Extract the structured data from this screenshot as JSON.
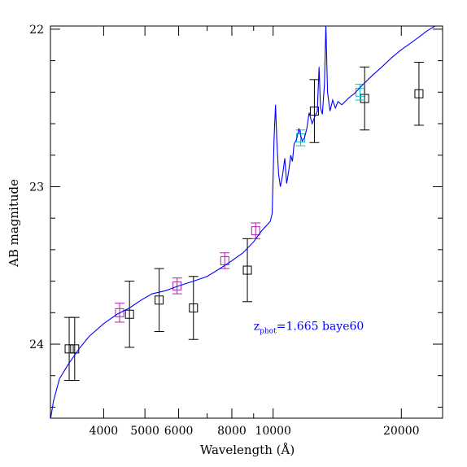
{
  "chart_data": {
    "type": "scatter",
    "xlabel": "Wavelength (Å)",
    "ylabel": "AB magnitude",
    "x_scale": "log",
    "xlim": [
      3000,
      25000
    ],
    "ylim": [
      24.47,
      21.98
    ],
    "x_ticks": [
      {
        "value": 4000,
        "label": "4000"
      },
      {
        "value": 5000,
        "label": "5000"
      },
      {
        "value": 6000,
        "label": "6000"
      },
      {
        "value": 8000,
        "label": "8000"
      },
      {
        "value": 10000,
        "label": "10000"
      },
      {
        "value": 20000,
        "label": "20000"
      }
    ],
    "x_minor_ticks": [
      7000,
      9000,
      30000
    ],
    "y_ticks": [
      {
        "value": 22,
        "label": "22"
      },
      {
        "value": 23,
        "label": "23"
      },
      {
        "value": 24,
        "label": "24"
      }
    ],
    "y_minor_step": 0.2,
    "annotation": {
      "prefix": "z",
      "subscript": "phot",
      "rest": "=1.665 baye60",
      "color": "#0000ff",
      "x": 9000,
      "y": 23.91
    },
    "series": [
      {
        "style": "box-errorbar",
        "color": "#000000",
        "points": [
          {
            "x": 3320,
            "y": 24.03,
            "err": 0.2
          },
          {
            "x": 3420,
            "y": 24.03,
            "err": 0.2
          },
          {
            "x": 4600,
            "y": 23.81,
            "err": 0.21
          },
          {
            "x": 5400,
            "y": 23.72,
            "err": 0.2
          },
          {
            "x": 6500,
            "y": 23.77,
            "err": 0.2
          },
          {
            "x": 8700,
            "y": 23.53,
            "err": 0.2
          },
          {
            "x": 12500,
            "y": 22.52,
            "err": 0.2
          },
          {
            "x": 16400,
            "y": 22.44,
            "err": 0.2
          },
          {
            "x": 22000,
            "y": 22.41,
            "err": 0.2
          }
        ]
      },
      {
        "style": "box-errorbar",
        "color": "#aa22aa",
        "points": [
          {
            "x": 4360,
            "y": 23.8,
            "err": 0.06
          },
          {
            "x": 5950,
            "y": 23.63,
            "err": 0.05
          },
          {
            "x": 7700,
            "y": 23.47,
            "err": 0.05
          },
          {
            "x": 9100,
            "y": 23.28,
            "err": 0.05
          }
        ]
      },
      {
        "style": "box-errorbar",
        "color": "#11bbcc",
        "points": [
          {
            "x": 11600,
            "y": 22.69,
            "err": 0.05
          },
          {
            "x": 16000,
            "y": 22.4,
            "err": 0.05
          }
        ]
      },
      {
        "style": "line",
        "color": "#0000ff",
        "points": [
          [
            3000,
            24.48
          ],
          [
            3050,
            24.36
          ],
          [
            3150,
            24.22
          ],
          [
            3300,
            24.13
          ],
          [
            3500,
            24.03
          ],
          [
            3700,
            23.95
          ],
          [
            4000,
            23.87
          ],
          [
            4300,
            23.81
          ],
          [
            4600,
            23.77
          ],
          [
            4900,
            23.72
          ],
          [
            5200,
            23.68
          ],
          [
            5600,
            23.66
          ],
          [
            6000,
            23.63
          ],
          [
            6500,
            23.6
          ],
          [
            7000,
            23.57
          ],
          [
            7500,
            23.52
          ],
          [
            8000,
            23.47
          ],
          [
            8500,
            23.42
          ],
          [
            9000,
            23.35
          ],
          [
            9400,
            23.28
          ],
          [
            9700,
            23.24
          ],
          [
            9850,
            23.22
          ],
          [
            9950,
            23.17
          ],
          [
            10050,
            22.7
          ],
          [
            10130,
            22.48
          ],
          [
            10200,
            22.7
          ],
          [
            10300,
            22.92
          ],
          [
            10400,
            23.0
          ],
          [
            10520,
            22.93
          ],
          [
            10650,
            22.82
          ],
          [
            10760,
            22.98
          ],
          [
            10880,
            22.9
          ],
          [
            11000,
            22.8
          ],
          [
            11100,
            22.84
          ],
          [
            11200,
            22.73
          ],
          [
            11350,
            22.7
          ],
          [
            11500,
            22.63
          ],
          [
            11700,
            22.71
          ],
          [
            11850,
            22.69
          ],
          [
            12000,
            22.63
          ],
          [
            12150,
            22.53
          ],
          [
            12350,
            22.6
          ],
          [
            12550,
            22.55
          ],
          [
            12700,
            22.52
          ],
          [
            12820,
            22.24
          ],
          [
            12920,
            22.5
          ],
          [
            13050,
            22.54
          ],
          [
            13200,
            22.35
          ],
          [
            13300,
            21.97
          ],
          [
            13420,
            22.4
          ],
          [
            13600,
            22.52
          ],
          [
            13800,
            22.45
          ],
          [
            14000,
            22.5
          ],
          [
            14200,
            22.46
          ],
          [
            14500,
            22.48
          ],
          [
            15000,
            22.44
          ],
          [
            15500,
            22.41
          ],
          [
            16000,
            22.37
          ],
          [
            17000,
            22.3
          ],
          [
            18000,
            22.24
          ],
          [
            19000,
            22.18
          ],
          [
            20000,
            22.13
          ],
          [
            21000,
            22.09
          ],
          [
            22000,
            22.05
          ],
          [
            23000,
            22.01
          ],
          [
            24000,
            21.98
          ]
        ]
      }
    ]
  }
}
